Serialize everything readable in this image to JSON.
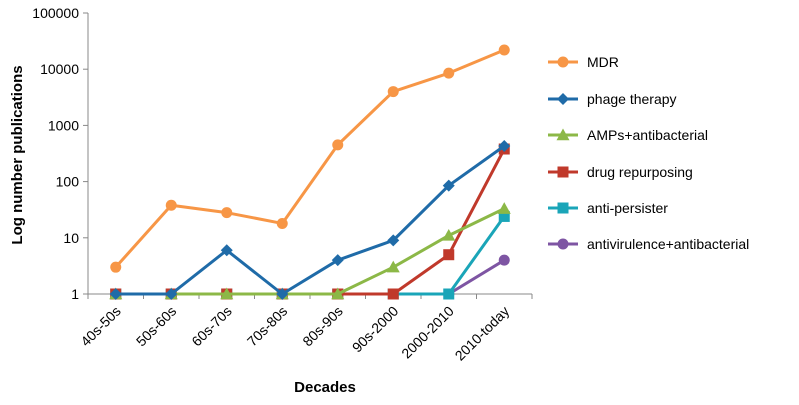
{
  "chart_data": {
    "type": "line",
    "title": "",
    "xlabel": "Decades",
    "ylabel": "Log number publications",
    "yscale": "log",
    "ylim": [
      1,
      100000
    ],
    "yticks": [
      1,
      10,
      100,
      1000,
      10000,
      100000
    ],
    "ytick_labels": [
      "1",
      "10",
      "100",
      "1000",
      "10000",
      "100000"
    ],
    "categories": [
      "40s-50s",
      "50s-60s",
      "60s-70s",
      "70s-80s",
      "80s-90s",
      "90s-2000",
      "2000-2010",
      "2010-today"
    ],
    "grid": false,
    "legend_position": "right",
    "series": [
      {
        "name": "MDR",
        "color": "#F79646",
        "marker": "circle",
        "values": [
          3,
          38,
          28,
          18,
          450,
          4000,
          8500,
          22000
        ]
      },
      {
        "name": "phage therapy",
        "color": "#1F6BA8",
        "marker": "diamond",
        "values": [
          1,
          1,
          6,
          1,
          4,
          9,
          85,
          430
        ]
      },
      {
        "name": "AMPs+antibacterial",
        "color": "#8CB847",
        "marker": "triangle",
        "values": [
          1,
          1,
          1,
          1,
          1,
          3,
          11,
          33
        ]
      },
      {
        "name": "drug repurposing",
        "color": "#C0392B",
        "marker": "square",
        "values": [
          1,
          1,
          1,
          1,
          1,
          1,
          5,
          380
        ]
      },
      {
        "name": "anti-persister",
        "color": "#1AA5B8",
        "marker": "square",
        "values": [
          1,
          1,
          1,
          1,
          1,
          1,
          1,
          24
        ]
      },
      {
        "name": "antivirulence+antibacterial",
        "color": "#7E55A3",
        "marker": "circle",
        "values": [
          1,
          1,
          1,
          1,
          1,
          1,
          1,
          4
        ]
      }
    ]
  }
}
